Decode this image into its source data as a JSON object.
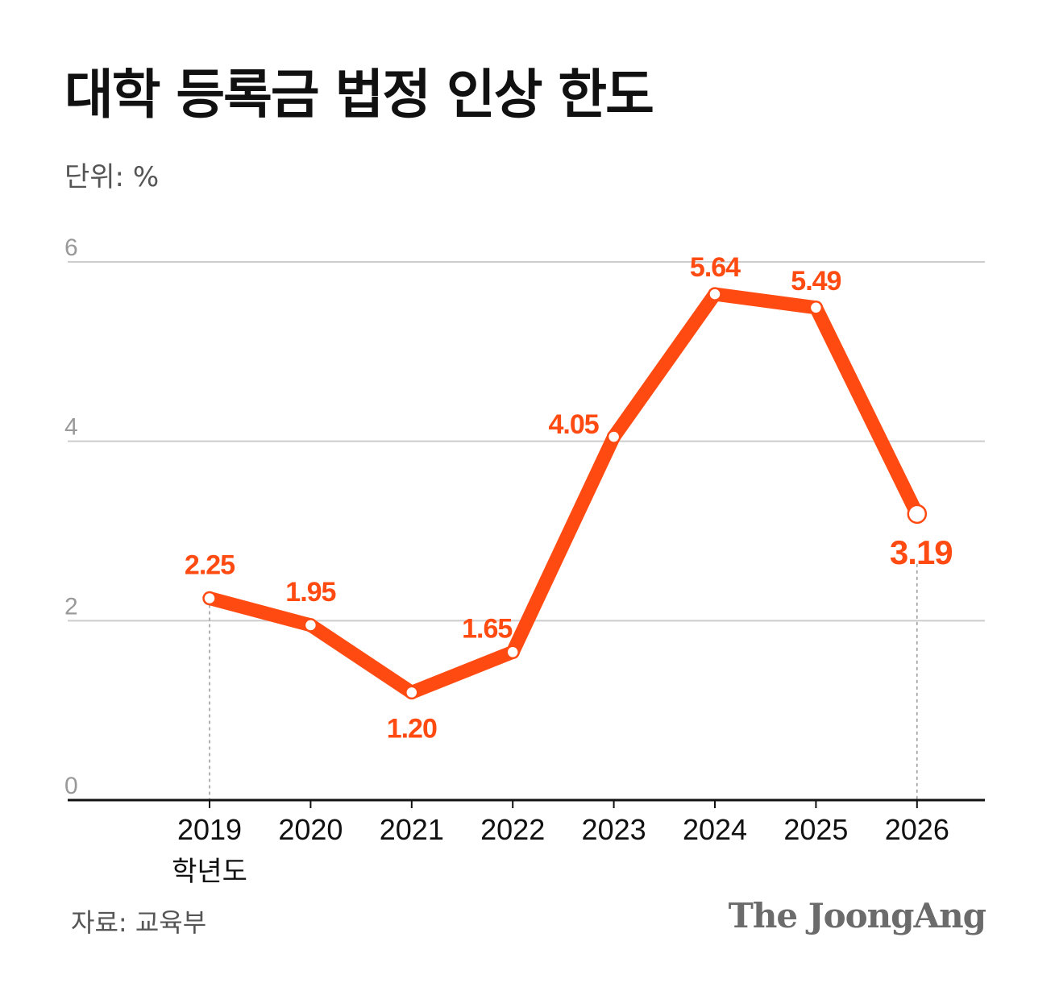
{
  "title": "대학 등록금 법정 인상 한도",
  "unit_label": "단위: %",
  "source": "자료: 교육부",
  "logo": "The JoongAng",
  "colors": {
    "line": "#ff4b12",
    "label": "#ff4b12",
    "grid": "#cccccc",
    "axis": "#111111",
    "tick": "#999999"
  },
  "chart_data": {
    "type": "line",
    "title": "대학 등록금 법정 인상 한도",
    "ylabel": "단위: %",
    "xlabel_suffix": "학년도",
    "ylim": [
      0,
      6
    ],
    "yticks": [
      "0",
      "2",
      "4",
      "6"
    ],
    "grid": true,
    "categories": [
      "2019",
      "2020",
      "2021",
      "2022",
      "2023",
      "2024",
      "2025",
      "2026"
    ],
    "values": [
      2.25,
      1.95,
      1.2,
      1.65,
      4.05,
      5.64,
      5.49,
      3.19
    ],
    "data_labels": [
      "2.25",
      "1.95",
      "1.20",
      "1.65",
      "4.05",
      "5.64",
      "5.49",
      "3.19"
    ],
    "source": "자료: 교육부"
  }
}
